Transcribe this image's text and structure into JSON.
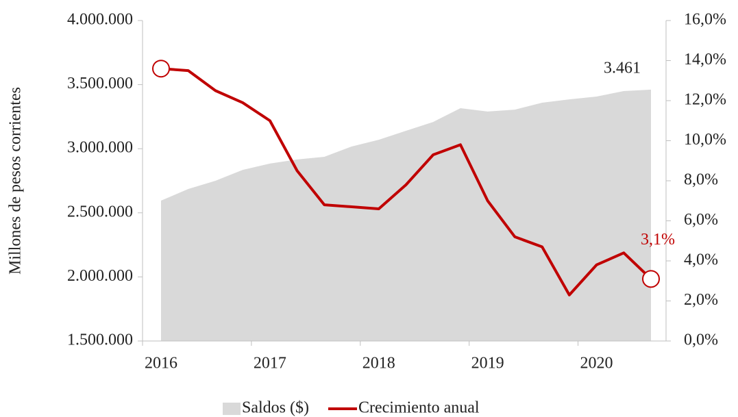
{
  "chart_data": {
    "type": "area-line",
    "y_label": "Millones de pesos corrientes",
    "categories": [
      "2016",
      null,
      null,
      null,
      "2017",
      null,
      null,
      null,
      "2018",
      null,
      null,
      null,
      "2019",
      null,
      null,
      null,
      "2020",
      null,
      null
    ],
    "series": [
      {
        "name": "Saldos ($)",
        "color": "#d9d9d9",
        "kind": "area",
        "axis": "y",
        "values": [
          2595000,
          2686000,
          2750000,
          2835000,
          2884000,
          2916000,
          2937000,
          3017000,
          3070000,
          3140000,
          3209000,
          3316000,
          3290000,
          3305000,
          3359000,
          3385000,
          3407000,
          3450000,
          3461000
        ],
        "value_labels": [
          null,
          null,
          null,
          null,
          null,
          null,
          null,
          null,
          null,
          null,
          null,
          null,
          null,
          null,
          null,
          null,
          null,
          null,
          "3.461"
        ]
      },
      {
        "name": "Crecimiento anual",
        "color": "#c00000",
        "kind": "line",
        "axis": "y2",
        "values": [
          13.6,
          13.5,
          12.5,
          11.9,
          11.0,
          8.5,
          6.8,
          6.7,
          6.6,
          7.8,
          9.3,
          9.8,
          7.0,
          5.2,
          4.7,
          2.3,
          3.8,
          4.4,
          3.1
        ],
        "value_labels": [
          null,
          null,
          null,
          null,
          null,
          null,
          null,
          null,
          null,
          null,
          null,
          null,
          null,
          null,
          null,
          null,
          null,
          null,
          "3,1%"
        ]
      }
    ],
    "ylim": [
      1500000,
      4000000
    ],
    "yticks": [
      {
        "value": 1500000,
        "label": "1.500.000"
      },
      {
        "value": 2000000,
        "label": "2.000.000"
      },
      {
        "value": 2500000,
        "label": "2.500.000"
      },
      {
        "value": 3000000,
        "label": "3.000.000"
      },
      {
        "value": 3500000,
        "label": "3.500.000"
      },
      {
        "value": 4000000,
        "label": "4.000.000"
      }
    ],
    "y2lim": [
      0,
      16
    ],
    "y2ticks": [
      {
        "value": 0,
        "label": "0,0%"
      },
      {
        "value": 2,
        "label": "2,0%"
      },
      {
        "value": 4,
        "label": "4,0%"
      },
      {
        "value": 6,
        "label": "6,0%"
      },
      {
        "value": 8,
        "label": "8,0%"
      },
      {
        "value": 10,
        "label": "10,0%"
      },
      {
        "value": 12,
        "label": "12,0%"
      },
      {
        "value": 14,
        "label": "14,0%"
      },
      {
        "value": 16,
        "label": "16,0%"
      }
    ],
    "legend": "bottom"
  }
}
